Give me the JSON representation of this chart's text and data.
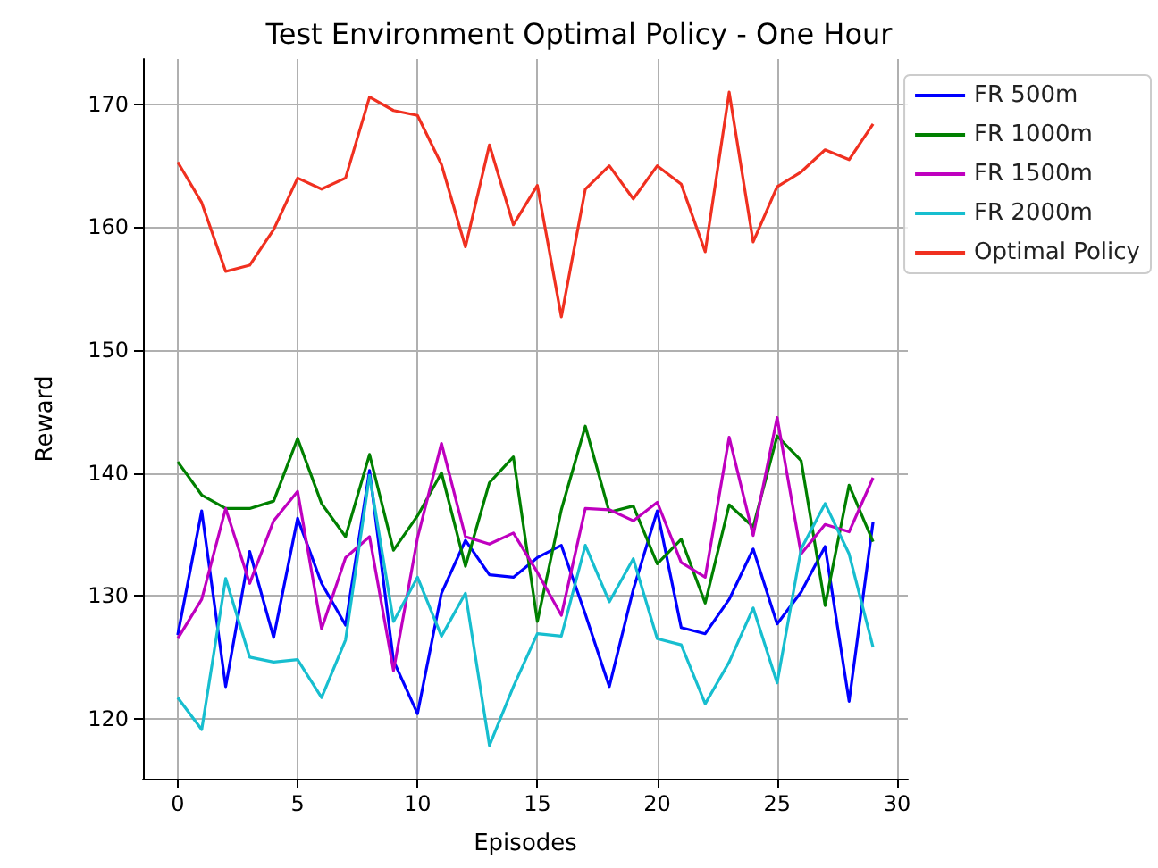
{
  "chart_data": {
    "type": "line",
    "title": "Test Environment Optimal Policy - One Hour",
    "xlabel": "Episodes",
    "ylabel": "Reward",
    "x": [
      0,
      1,
      2,
      3,
      4,
      5,
      6,
      7,
      8,
      9,
      10,
      11,
      12,
      13,
      14,
      15,
      16,
      17,
      18,
      19,
      20,
      21,
      22,
      23,
      24,
      25,
      26,
      27,
      28,
      29
    ],
    "series": [
      {
        "name": "FR 500m",
        "color": "#0000ff",
        "values": [
          126.8,
          136.9,
          122.6,
          133.6,
          126.6,
          136.3,
          131,
          127.6,
          140.2,
          124.7,
          120.4,
          130.2,
          134.5,
          131.7,
          131.5,
          133.1,
          134.1,
          128.5,
          122.6,
          130.5,
          136.9,
          127.4,
          126.9,
          129.7,
          133.8,
          127.7,
          130.3,
          134,
          121.4,
          136
        ]
      },
      {
        "name": "FR 1000m",
        "color": "#008000",
        "values": [
          140.9,
          138.2,
          137.1,
          137.1,
          137.7,
          142.8,
          137.5,
          134.8,
          141.5,
          133.7,
          136.5,
          140,
          132.4,
          139.2,
          141.3,
          127.9,
          137,
          143.8,
          136.8,
          137.3,
          132.6,
          134.6,
          129.4,
          137.4,
          135.6,
          143,
          141,
          129.2,
          139,
          134.4
        ]
      },
      {
        "name": "FR 1500m",
        "color": "#bf00bf",
        "values": [
          126.5,
          129.7,
          137.1,
          131,
          136.1,
          138.5,
          127.3,
          133.1,
          134.8,
          123.9,
          134.7,
          142.4,
          134.8,
          134.2,
          135.1,
          131.9,
          128.4,
          137.1,
          137,
          136.1,
          137.6,
          132.7,
          131.5,
          142.9,
          134.9,
          144.5,
          133.4,
          135.8,
          135.2,
          139.6
        ]
      },
      {
        "name": "FR 2000m",
        "color": "#17becf",
        "values": [
          121.7,
          119.1,
          131.4,
          125,
          124.6,
          124.8,
          121.7,
          126.4,
          139.8,
          127.9,
          131.5,
          126.7,
          130.2,
          117.8,
          122.6,
          126.9,
          126.7,
          134.1,
          129.5,
          133,
          126.5,
          126,
          121.2,
          124.6,
          129,
          122.9,
          133.8,
          137.5,
          133.4,
          125.8
        ]
      },
      {
        "name": "Optimal Policy",
        "color": "#f03020",
        "values": [
          165.3,
          162,
          156.4,
          156.9,
          159.8,
          164,
          163.1,
          164,
          170.6,
          169.5,
          169.1,
          165.1,
          158.4,
          166.7,
          160.2,
          163.4,
          152.7,
          163.1,
          165,
          162.3,
          165,
          163.5,
          158,
          171,
          158.8,
          163.3,
          164.5,
          166.3,
          165.5,
          168.4
        ]
      }
    ],
    "xlim": [
      -1.45,
      30.45
    ],
    "xticks": [
      0,
      5,
      10,
      15,
      20,
      25,
      30
    ],
    "ylim": [
      115.1,
      173.7
    ],
    "yticks": [
      120,
      130,
      140,
      150,
      160,
      170
    ],
    "grid": true,
    "legend": "top right",
    "marker": "none",
    "line_style": "solid"
  }
}
